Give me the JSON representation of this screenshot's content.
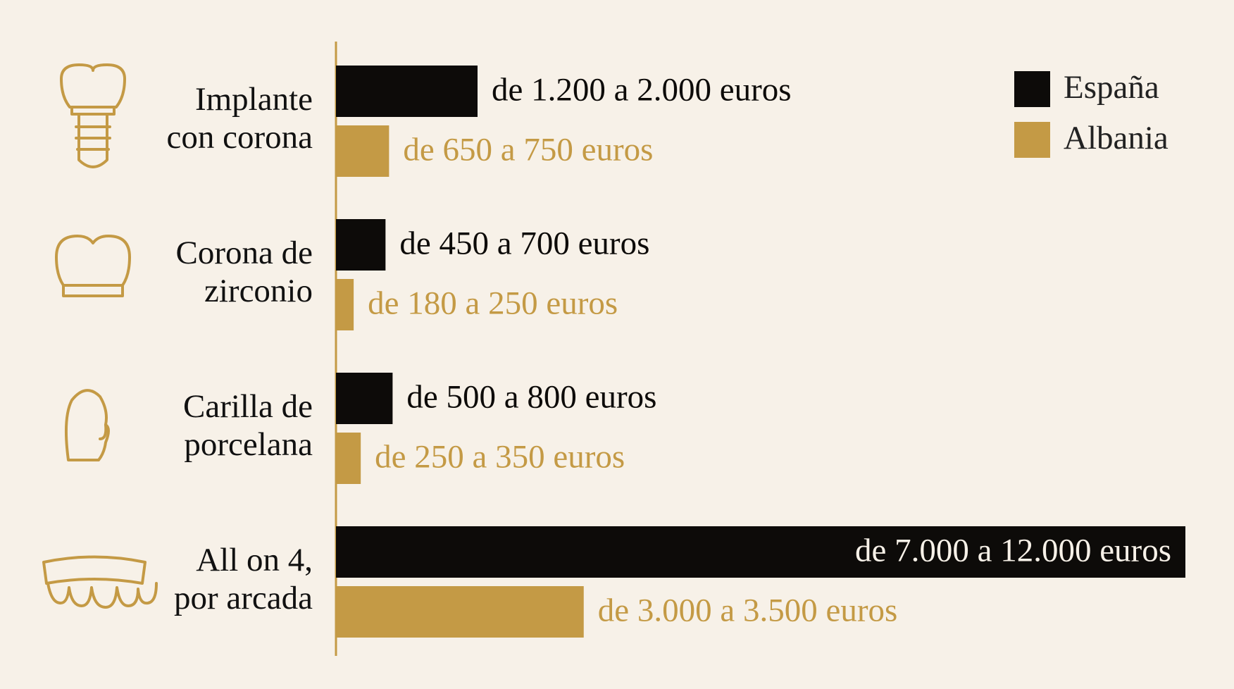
{
  "chart_data": {
    "type": "bar",
    "orientation": "horizontal",
    "categories": [
      "Implante con corona",
      "Corona de zirconio",
      "Carilla de porcelana",
      "All on 4, por arcada"
    ],
    "series": [
      {
        "name": "España",
        "color": "#0d0b09",
        "label_color": "#0d0b09",
        "inside_label_color": "#f7f1e8",
        "values": [
          2000,
          700,
          800,
          12000
        ],
        "value_labels": [
          "de 1.200 a 2.000 euros",
          "de 450 a 700 euros",
          "de 500 a 800 euros",
          "de 7.000 a 12.000 euros"
        ]
      },
      {
        "name": "Albania",
        "color": "#c49a45",
        "label_color": "#c49a45",
        "inside_label_color": "#f7f1e8",
        "values": [
          750,
          250,
          350,
          3500
        ],
        "value_labels": [
          "de 650 a 750 euros",
          "de 180 a 250 euros",
          "de 250 a 350 euros",
          "de 3.000 a 3.500 euros"
        ]
      }
    ],
    "xlim": [
      0,
      12000
    ],
    "legend": "top-right"
  }
}
